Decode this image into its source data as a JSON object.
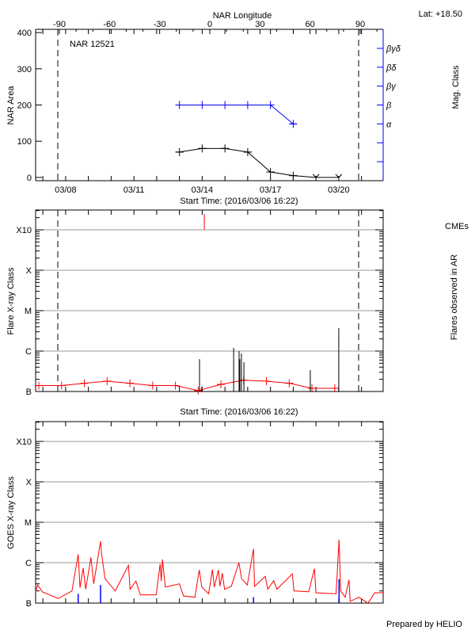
{
  "header": {
    "lat_label": "Lat: +18.50",
    "credit": "Prepared by HELIO"
  },
  "chart_data": [
    {
      "type": "line",
      "title": "NAR 12521",
      "top_axis_label": "NAR Longitude",
      "top_ticks": [
        -90,
        -60,
        -30,
        0,
        30,
        60,
        90
      ],
      "limb_longitudes": [
        -90,
        90
      ],
      "xlabel": "Start Time: (2016/03/06 16:22)",
      "x_start": "2016-03-06T16:22",
      "x_end": "2016-03-21T22:50",
      "x_ticks": [
        {
          "t": "2016-03-08T00:00",
          "label": "03/08"
        },
        {
          "t": "2016-03-11T00:00",
          "label": "03/11"
        },
        {
          "t": "2016-03-14T00:00",
          "label": "03/14"
        },
        {
          "t": "2016-03-17T00:00",
          "label": "03/17"
        },
        {
          "t": "2016-03-20T00:00",
          "label": "03/20"
        }
      ],
      "ylabel": "NAR Area",
      "yticks": [
        0,
        100,
        200,
        300,
        400
      ],
      "ylim": [
        -9,
        409
      ],
      "right_axis_label": "Mag. Class",
      "right_ticks": [
        "",
        "",
        "α",
        "β",
        "βγ",
        "βδ",
        "βγδ"
      ],
      "colors": {
        "area": "#000000",
        "mag_class": "#0000ff"
      },
      "area": {
        "x": [
          "2016-03-13T00:00",
          "2016-03-14T00:00",
          "2016-03-15T00:00",
          "2016-03-16T00:00",
          "2016-03-17T00:00",
          "2016-03-18T00:00",
          "2016-03-19T00:00",
          "2016-03-20T00:00"
        ],
        "values": [
          70,
          80,
          80,
          70,
          15,
          5,
          0,
          0
        ]
      },
      "mag_class": {
        "x": [
          "2016-03-13T00:00",
          "2016-03-14T00:00",
          "2016-03-15T00:00",
          "2016-03-16T00:00",
          "2016-03-17T00:00",
          "2016-03-18T00:00"
        ],
        "values": [
          "β",
          "β",
          "β",
          "β",
          "β",
          "α"
        ]
      }
    },
    {
      "type": "bar",
      "ylabel": "Flare X-ray Class",
      "right_label": "Flares observed in AR",
      "cme_label": "CMEs",
      "xlabel": "Start Time: (2016/03/06 16:22)",
      "yscale": "log",
      "ylim": [
        1e-07,
        0.0031
      ],
      "class_levels": [
        {
          "label": "B",
          "flux": 1e-07
        },
        {
          "label": "C",
          "flux": 1e-06
        },
        {
          "label": "M",
          "flux": 1e-05
        },
        {
          "label": "X",
          "flux": 0.0001
        },
        {
          "label": "X10",
          "flux": 0.001
        }
      ],
      "grid": true,
      "colors": {
        "flares": "#000000",
        "background_line": "#ff0000",
        "cme": "#ff0000"
      },
      "flares": [
        {
          "t": "2016-03-13T21:10",
          "flux": 6.3e-07
        },
        {
          "t": "2016-03-13T23:35",
          "flux": 1.3e-07
        },
        {
          "t": "2016-03-15T09:10",
          "flux": 1.2e-06
        },
        {
          "t": "2016-03-15T14:55",
          "flux": 1e-06
        },
        {
          "t": "2016-03-15T15:40",
          "flux": 6.3e-07
        },
        {
          "t": "2016-03-15T17:20",
          "flux": 8.7e-07
        },
        {
          "t": "2016-03-15T20:00",
          "flux": 5.3e-07
        },
        {
          "t": "2016-03-18T18:00",
          "flux": 3.4e-07
        },
        {
          "t": "2016-03-20T00:00",
          "flux": 3.7e-06
        }
      ],
      "cmes": [
        "2016-03-14T02:15"
      ],
      "background_line": {
        "x": [
          "2016-03-06T19:45",
          "2016-03-07T19:45",
          "2016-03-08T19:45",
          "2016-03-09T19:45",
          "2016-03-10T19:45",
          "2016-03-11T19:45",
          "2016-03-12T19:45",
          "2016-03-13T19:45",
          "2016-03-14T19:45",
          "2016-03-15T19:45",
          "2016-03-16T19:45",
          "2016-03-17T19:45",
          "2016-03-18T19:45",
          "2016-03-19T19:45"
        ],
        "values": [
          1.4e-07,
          1.4e-07,
          1.6e-07,
          1.8e-07,
          1.6e-07,
          1.4e-07,
          1.4e-07,
          1.05e-07,
          1.5e-07,
          1.9e-07,
          1.8e-07,
          1.6e-07,
          1.2e-07,
          1.2e-07
        ]
      }
    },
    {
      "type": "line",
      "ylabel": "GOES X-ray Class",
      "yscale": "log",
      "ylim": [
        1e-07,
        0.0031
      ],
      "class_levels": [
        {
          "label": "B",
          "flux": 1e-07
        },
        {
          "label": "C",
          "flux": 1e-06
        },
        {
          "label": "M",
          "flux": 1e-05
        },
        {
          "label": "X",
          "flux": 0.0001
        },
        {
          "label": "X10",
          "flux": 0.001
        }
      ],
      "grid": true,
      "colors": {
        "goes": "#ff0000",
        "markers": "#0000ff"
      },
      "goes": [
        [
          "2016-03-06T16:22",
          1.9e-07
        ],
        [
          "2016-03-06T18:30",
          2.8e-07
        ],
        [
          "2016-03-06T23:30",
          1.9e-07
        ],
        [
          "2016-03-07T16:20",
          1.3e-07
        ],
        [
          "2016-03-08T06:40",
          2e-07
        ],
        [
          "2016-03-08T13:15",
          1.6e-06
        ],
        [
          "2016-03-08T15:10",
          2.4e-07
        ],
        [
          "2016-03-08T18:30",
          7.4e-07
        ],
        [
          "2016-03-08T21:10",
          2.2e-07
        ],
        [
          "2016-03-09T02:40",
          1.35e-06
        ],
        [
          "2016-03-09T05:35",
          3e-07
        ],
        [
          "2016-03-09T12:50",
          3.4e-06
        ],
        [
          "2016-03-09T14:00",
          1.6e-06
        ],
        [
          "2016-03-09T17:35",
          4e-07
        ],
        [
          "2016-03-10T04:20",
          2e-07
        ],
        [
          "2016-03-10T18:15",
          8.6e-07
        ],
        [
          "2016-03-10T20:00",
          2.2e-07
        ],
        [
          "2016-03-11T02:10",
          3.5e-07
        ],
        [
          "2016-03-11T06:45",
          1.6e-07
        ],
        [
          "2016-03-11T23:30",
          1.6e-07
        ],
        [
          "2016-03-12T03:40",
          9.3e-07
        ],
        [
          "2016-03-12T04:50",
          3.5e-07
        ],
        [
          "2016-03-12T06:05",
          1.2e-06
        ],
        [
          "2016-03-12T09:10",
          2.5e-07
        ],
        [
          "2016-03-13T00:00",
          3e-07
        ],
        [
          "2016-03-13T04:20",
          1.5e-07
        ],
        [
          "2016-03-13T16:20",
          1.4e-07
        ],
        [
          "2016-03-13T20:55",
          6.6e-07
        ],
        [
          "2016-03-13T23:35",
          2.5e-07
        ],
        [
          "2016-03-14T06:45",
          1.7e-07
        ],
        [
          "2016-03-14T10:50",
          6.8e-07
        ],
        [
          "2016-03-14T12:45",
          2.5e-07
        ],
        [
          "2016-03-14T17:05",
          6.6e-07
        ],
        [
          "2016-03-14T18:45",
          2.6e-07
        ],
        [
          "2016-03-14T21:10",
          5.5e-07
        ],
        [
          "2016-03-14T23:35",
          2.2e-07
        ],
        [
          "2016-03-15T06:45",
          2.6e-07
        ],
        [
          "2016-03-15T14:40",
          1e-06
        ],
        [
          "2016-03-15T17:35",
          4e-07
        ],
        [
          "2016-03-15T23:35",
          2.8e-07
        ],
        [
          "2016-03-16T06:05",
          2.2e-06
        ],
        [
          "2016-03-16T07:15",
          2.6e-07
        ],
        [
          "2016-03-16T18:30",
          4.6e-07
        ],
        [
          "2016-03-16T21:10",
          2.2e-07
        ],
        [
          "2016-03-17T03:25",
          3.6e-07
        ],
        [
          "2016-03-17T06:45",
          2.2e-07
        ],
        [
          "2016-03-17T23:05",
          5.3e-07
        ],
        [
          "2016-03-18T00:45",
          2e-07
        ],
        [
          "2016-03-18T16:20",
          1.9e-07
        ],
        [
          "2016-03-18T22:20",
          7.1e-07
        ],
        [
          "2016-03-19T00:00",
          1.8e-07
        ],
        [
          "2016-03-19T21:10",
          1.7e-07
        ],
        [
          "2016-03-20T00:20",
          3.7e-06
        ],
        [
          "2016-03-20T02:00",
          2e-07
        ],
        [
          "2016-03-20T06:45",
          1.4e-07
        ],
        [
          "2016-03-20T10:50",
          3.8e-07
        ],
        [
          "2016-03-20T12:00",
          1.1e-07
        ],
        [
          "2016-03-20T21:10",
          1.4e-07
        ],
        [
          "2016-03-21T06:45",
          1e-07
        ],
        [
          "2016-03-21T13:55",
          1.8e-07
        ],
        [
          "2016-03-21T22:50",
          1.8e-07
        ]
      ],
      "markers": [
        {
          "t": "2016-03-08T13:15",
          "flux": 1.7e-07
        },
        {
          "t": "2016-03-09T12:50",
          "flux": 2.8e-07
        },
        {
          "t": "2016-03-16T06:05",
          "flux": 1.4e-07
        },
        {
          "t": "2016-03-20T00:20",
          "flux": 3.9e-07
        }
      ]
    }
  ]
}
